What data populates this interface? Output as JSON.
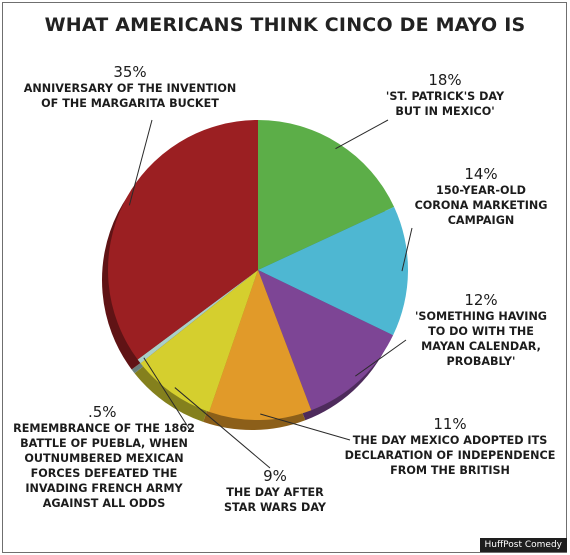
{
  "credit": "HuffPost Comedy",
  "chart_data": {
    "type": "pie",
    "title": "WHAT AMERICANS THINK CINCO DE MAYO IS",
    "slices": [
      {
        "label": "'ST. PATRICK'S DAY BUT IN MEXICO'",
        "value": 18,
        "pct_label": "18%",
        "color": "#5cae48"
      },
      {
        "label": "150-YEAR-OLD CORONA MARKETING CAMPAIGN",
        "value": 14,
        "pct_label": "14%",
        "color": "#4eb7d2"
      },
      {
        "label": "'SOMETHING HAVING TO DO WITH THE MAYAN CALENDAR, PROBABLY'",
        "value": 12,
        "pct_label": "12%",
        "color": "#7d4595"
      },
      {
        "label": "THE DAY MEXICO ADOPTED ITS DECLARATION OF INDEPENDENCE FROM THE BRITISH",
        "value": 11,
        "pct_label": "11%",
        "color": "#e19a29"
      },
      {
        "label": "THE DAY AFTER STAR WARS DAY",
        "value": 9,
        "pct_label": "9%",
        "color": "#d5cf2e"
      },
      {
        "label": "REMEMBRANCE OF THE 1862 BATTLE OF PUEBLA, WHEN OUTNUMBERED MEXICAN FORCES DEFEATED THE INVADING FRENCH ARMY AGAINST ALL ODDS",
        "value": 0.5,
        "pct_label": ".5%",
        "color": "#a9cfc8"
      },
      {
        "label": "ANNIVERSARY OF THE INVENTION OF THE MARGARITA BUCKET",
        "value": 35,
        "pct_label": "35%",
        "color": "#9b1f22"
      }
    ]
  },
  "labels": {
    "margarita": {
      "pct": "35%",
      "text": "ANNIVERSARY OF THE INVENTION\nOF THE MARGARITA BUCKET"
    },
    "stpatricks": {
      "pct": "18%",
      "text": "'ST. PATRICK'S DAY\nBUT IN MEXICO'"
    },
    "corona": {
      "pct": "14%",
      "text": "150-YEAR-OLD\nCORONA MARKETING\nCAMPAIGN"
    },
    "mayan": {
      "pct": "12%",
      "text": "'SOMETHING HAVING\nTO DO WITH THE\nMAYAN CALENDAR,\nPROBABLY'"
    },
    "independence": {
      "pct": "11%",
      "text": "THE DAY MEXICO ADOPTED ITS\nDECLARATION OF INDEPENDENCE\nFROM THE BRITISH"
    },
    "starwars": {
      "pct": "9%",
      "text": "THE DAY AFTER\nSTAR WARS DAY"
    },
    "puebla": {
      "pct": ".5%",
      "text": "REMEMBRANCE OF THE 1862\nBATTLE OF PUEBLA, WHEN\nOUTNUMBERED MEXICAN\nFORCES DEFEATED THE\nINVADING FRENCH ARMY\nAGAINST ALL ODDS"
    }
  }
}
